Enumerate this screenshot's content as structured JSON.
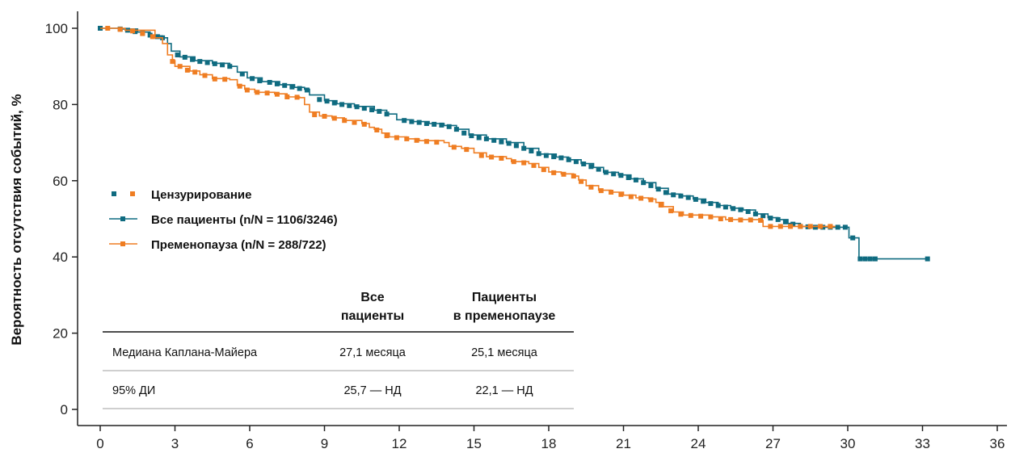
{
  "chart_data": {
    "type": "line",
    "title": "",
    "xlabel": "",
    "ylabel": "Вероятность отсутствия событий, %",
    "xlim": [
      0,
      36
    ],
    "ylim": [
      0,
      100
    ],
    "xticks": [
      "0",
      "3",
      "6",
      "9",
      "12",
      "15",
      "18",
      "21",
      "24",
      "27",
      "30",
      "33",
      "36"
    ],
    "yticks": [
      "0",
      "20",
      "40",
      "60",
      "80",
      "100"
    ],
    "grid": false,
    "legend": {
      "placement": "middle-left",
      "censor_label": "Цензурирование",
      "entries": [
        "Все пациенты (n/N = 1106/3246)",
        "Пременопауза (n/N = 288/722)"
      ]
    },
    "series": [
      {
        "name": "Все пациенты (n/N = 1106/3246)",
        "color": "#0f6b80",
        "points": [
          [
            0,
            100
          ],
          [
            0.8,
            99.8
          ],
          [
            1.5,
            99
          ],
          [
            2,
            98
          ],
          [
            2.5,
            97.5
          ],
          [
            2.7,
            96
          ],
          [
            2.85,
            94
          ],
          [
            3.2,
            92.5
          ],
          [
            3.8,
            91.5
          ],
          [
            4.5,
            90.8
          ],
          [
            5.2,
            90
          ],
          [
            5.5,
            88.5
          ],
          [
            5.9,
            87
          ],
          [
            6.5,
            86
          ],
          [
            7.2,
            85.2
          ],
          [
            7.8,
            84.5
          ],
          [
            8.2,
            84
          ],
          [
            8.4,
            82.5
          ],
          [
            9,
            81
          ],
          [
            9.5,
            80.2
          ],
          [
            10.2,
            79.5
          ],
          [
            11,
            78.5
          ],
          [
            11.5,
            77.5
          ],
          [
            11.9,
            76
          ],
          [
            12.5,
            75.5
          ],
          [
            13.2,
            75
          ],
          [
            13.8,
            74.5
          ],
          [
            14.3,
            73.5
          ],
          [
            14.8,
            72
          ],
          [
            15.5,
            71
          ],
          [
            16.3,
            70
          ],
          [
            17,
            68.5
          ],
          [
            17.6,
            67
          ],
          [
            18.3,
            66.2
          ],
          [
            18.8,
            65.5
          ],
          [
            19.3,
            64.5
          ],
          [
            19.8,
            63.5
          ],
          [
            20.2,
            62.2
          ],
          [
            20.8,
            61.5
          ],
          [
            21.3,
            60.5
          ],
          [
            21.8,
            59.5
          ],
          [
            22.3,
            58
          ],
          [
            22.8,
            56.5
          ],
          [
            23.3,
            56
          ],
          [
            23.8,
            55.2
          ],
          [
            24.3,
            54.3
          ],
          [
            24.8,
            53.5
          ],
          [
            25.3,
            52.8
          ],
          [
            25.8,
            52.3
          ],
          [
            26.3,
            51.3
          ],
          [
            26.8,
            50.3
          ],
          [
            27.2,
            49.8
          ],
          [
            27.6,
            48.8
          ],
          [
            28.1,
            48
          ],
          [
            28.6,
            47.8
          ],
          [
            30,
            47.8
          ],
          [
            30.05,
            45
          ],
          [
            30.4,
            45
          ],
          [
            30.45,
            39.5
          ],
          [
            33.2,
            39.5
          ]
        ],
        "censor": [
          [
            0,
            100
          ],
          [
            0.8,
            99.8
          ],
          [
            1.1,
            99.5
          ],
          [
            1.4,
            99.1
          ],
          [
            1.7,
            98.7
          ],
          [
            2,
            98.2
          ],
          [
            2.3,
            97.8
          ],
          [
            2.5,
            97.5
          ],
          [
            3.1,
            93
          ],
          [
            3.4,
            92.4
          ],
          [
            3.7,
            91.8
          ],
          [
            4,
            91.3
          ],
          [
            4.3,
            91
          ],
          [
            4.6,
            90.7
          ],
          [
            4.9,
            90.4
          ],
          [
            5.2,
            90
          ],
          [
            5.7,
            88
          ],
          [
            6.1,
            86.8
          ],
          [
            6.4,
            86.2
          ],
          [
            6.8,
            85.8
          ],
          [
            7.1,
            85.4
          ],
          [
            7.4,
            85
          ],
          [
            7.7,
            84.6
          ],
          [
            8,
            84.2
          ],
          [
            8.3,
            83.8
          ],
          [
            8.8,
            81.3
          ],
          [
            9.1,
            80.9
          ],
          [
            9.4,
            80.4
          ],
          [
            9.7,
            80
          ],
          [
            10,
            79.7
          ],
          [
            10.3,
            79.4
          ],
          [
            10.6,
            79
          ],
          [
            10.9,
            78.6
          ],
          [
            11.2,
            78.2
          ],
          [
            11.5,
            77.5
          ],
          [
            12.2,
            75.8
          ],
          [
            12.5,
            75.5
          ],
          [
            12.8,
            75.3
          ],
          [
            13.1,
            75
          ],
          [
            13.4,
            74.8
          ],
          [
            13.7,
            74.6
          ],
          [
            14,
            74.2
          ],
          [
            14.3,
            73.5
          ],
          [
            14.6,
            72.5
          ],
          [
            14.9,
            71.8
          ],
          [
            15.2,
            71.3
          ],
          [
            15.5,
            71
          ],
          [
            15.8,
            70.6
          ],
          [
            16.1,
            70.2
          ],
          [
            16.4,
            69.8
          ],
          [
            16.7,
            69.2
          ],
          [
            17,
            68.5
          ],
          [
            17.3,
            67.8
          ],
          [
            17.6,
            67.1
          ],
          [
            17.9,
            66.6
          ],
          [
            18.2,
            66.3
          ],
          [
            18.5,
            66
          ],
          [
            18.8,
            65.5
          ],
          [
            19.1,
            65
          ],
          [
            19.4,
            64.4
          ],
          [
            19.7,
            63.7
          ],
          [
            20,
            63
          ],
          [
            20.3,
            62.2
          ],
          [
            20.6,
            61.8
          ],
          [
            20.9,
            61.4
          ],
          [
            21.2,
            60.8
          ],
          [
            21.5,
            60.2
          ],
          [
            21.8,
            59.5
          ],
          [
            22.1,
            58.7
          ],
          [
            22.4,
            57.8
          ],
          [
            22.7,
            56.9
          ],
          [
            23,
            56.3
          ],
          [
            23.3,
            56
          ],
          [
            23.6,
            55.6
          ],
          [
            23.9,
            55.1
          ],
          [
            24.2,
            54.6
          ],
          [
            24.5,
            54
          ],
          [
            24.8,
            53.5
          ],
          [
            25.1,
            53.1
          ],
          [
            25.4,
            52.7
          ],
          [
            25.7,
            52.4
          ],
          [
            26,
            51.9
          ],
          [
            26.3,
            51.3
          ],
          [
            26.6,
            50.8
          ],
          [
            26.9,
            50.2
          ],
          [
            27.2,
            49.8
          ],
          [
            27.5,
            49.2
          ],
          [
            27.8,
            48.6
          ],
          [
            28.1,
            48
          ],
          [
            28.4,
            47.9
          ],
          [
            28.7,
            47.8
          ],
          [
            29,
            47.8
          ],
          [
            29.3,
            47.8
          ],
          [
            29.6,
            47.8
          ],
          [
            29.9,
            47.8
          ],
          [
            30.2,
            45
          ],
          [
            30.5,
            39.5
          ],
          [
            30.7,
            39.5
          ],
          [
            30.9,
            39.5
          ],
          [
            31.1,
            39.5
          ],
          [
            33.2,
            39.5
          ]
        ]
      },
      {
        "name": "Пременопауза (n/N = 288/722)",
        "color": "#ef7d22",
        "points": [
          [
            0,
            100
          ],
          [
            1,
            99.5
          ],
          [
            2.2,
            97.5
          ],
          [
            2.5,
            96
          ],
          [
            2.7,
            93
          ],
          [
            2.9,
            91.5
          ],
          [
            3,
            90
          ],
          [
            3.6,
            88.8
          ],
          [
            4,
            87.8
          ],
          [
            4.5,
            86.8
          ],
          [
            5.2,
            86.5
          ],
          [
            5.5,
            85
          ],
          [
            5.8,
            84
          ],
          [
            6.2,
            83.2
          ],
          [
            7,
            82.8
          ],
          [
            7.5,
            82
          ],
          [
            8,
            81.8
          ],
          [
            8.2,
            80
          ],
          [
            8.4,
            78
          ],
          [
            8.8,
            77
          ],
          [
            9.3,
            76.5
          ],
          [
            9.8,
            75.8
          ],
          [
            10.5,
            75
          ],
          [
            10.8,
            74
          ],
          [
            11,
            73.5
          ],
          [
            11.3,
            72.5
          ],
          [
            11.6,
            71.5
          ],
          [
            12.3,
            71
          ],
          [
            12.8,
            70.5
          ],
          [
            13.8,
            70
          ],
          [
            14,
            69
          ],
          [
            14.5,
            68.5
          ],
          [
            15,
            67.3
          ],
          [
            15.5,
            66.3
          ],
          [
            16.3,
            65.8
          ],
          [
            16.5,
            65
          ],
          [
            17.2,
            64.5
          ],
          [
            17.6,
            63.5
          ],
          [
            18,
            62.3
          ],
          [
            18.5,
            61.8
          ],
          [
            19,
            61.2
          ],
          [
            19.2,
            60.2
          ],
          [
            19.5,
            58.7
          ],
          [
            20,
            57.5
          ],
          [
            20.5,
            57
          ],
          [
            21,
            56.2
          ],
          [
            21.5,
            55.5
          ],
          [
            22,
            55.2
          ],
          [
            22.3,
            54.3
          ],
          [
            22.6,
            53.2
          ],
          [
            23,
            51.8
          ],
          [
            23.4,
            51
          ],
          [
            24.5,
            50.5
          ],
          [
            25.1,
            49.8
          ],
          [
            26.5,
            49.6
          ],
          [
            26.6,
            48
          ],
          [
            29.3,
            48
          ],
          [
            29.5,
            48
          ]
        ],
        "censor": [
          [
            0.3,
            100
          ],
          [
            0.8,
            99.7
          ],
          [
            1.3,
            99.3
          ],
          [
            1.7,
            98.6
          ],
          [
            2.1,
            97.8
          ],
          [
            2.9,
            91.3
          ],
          [
            3.2,
            90
          ],
          [
            3.5,
            89
          ],
          [
            3.8,
            88.5
          ],
          [
            4.2,
            87.6
          ],
          [
            4.6,
            86.7
          ],
          [
            5,
            86.6
          ],
          [
            5.6,
            84.8
          ],
          [
            5.9,
            83.8
          ],
          [
            6.3,
            83.2
          ],
          [
            6.7,
            83
          ],
          [
            7.1,
            82.7
          ],
          [
            7.5,
            82
          ],
          [
            7.9,
            81.9
          ],
          [
            8.6,
            77.3
          ],
          [
            9,
            76.9
          ],
          [
            9.4,
            76.4
          ],
          [
            9.8,
            75.8
          ],
          [
            10.2,
            75.3
          ],
          [
            10.6,
            74.8
          ],
          [
            11.1,
            73.3
          ],
          [
            11.5,
            71.8
          ],
          [
            11.9,
            71.3
          ],
          [
            12.3,
            71
          ],
          [
            12.7,
            70.6
          ],
          [
            13.1,
            70.3
          ],
          [
            13.5,
            70.1
          ],
          [
            14.2,
            68.8
          ],
          [
            14.7,
            68.2
          ],
          [
            15.3,
            66.6
          ],
          [
            15.7,
            66.2
          ],
          [
            16.1,
            65.9
          ],
          [
            16.6,
            65
          ],
          [
            17,
            64.7
          ],
          [
            17.4,
            64
          ],
          [
            17.8,
            62.9
          ],
          [
            18.2,
            62.1
          ],
          [
            18.6,
            61.7
          ],
          [
            19,
            61.2
          ],
          [
            19.3,
            59.8
          ],
          [
            19.7,
            58.3
          ],
          [
            20.1,
            57.4
          ],
          [
            20.5,
            57
          ],
          [
            20.9,
            56.4
          ],
          [
            21.3,
            55.8
          ],
          [
            21.7,
            55.4
          ],
          [
            22.1,
            55
          ],
          [
            22.5,
            53.6
          ],
          [
            22.9,
            52.1
          ],
          [
            23.3,
            51.2
          ],
          [
            23.7,
            50.9
          ],
          [
            24.1,
            50.7
          ],
          [
            24.5,
            50.5
          ],
          [
            24.9,
            50
          ],
          [
            25.3,
            49.8
          ],
          [
            25.7,
            49.7
          ],
          [
            26.1,
            49.7
          ],
          [
            26.5,
            49.6
          ],
          [
            26.9,
            48
          ],
          [
            27.3,
            48
          ],
          [
            27.7,
            48
          ],
          [
            28.1,
            48
          ],
          [
            28.5,
            48
          ],
          [
            28.9,
            48
          ],
          [
            29.3,
            48
          ]
        ]
      }
    ],
    "table": {
      "headers": [
        [
          "",
          ""
        ],
        [
          "Все",
          "пациенты"
        ],
        [
          "Пациенты",
          "в пременопаузе"
        ]
      ],
      "rows": [
        [
          "Медиана Каплана-Майера",
          "27,1 месяца",
          "25,1 месяца"
        ],
        [
          "95% ДИ",
          "25,7 — НД",
          "22,1 — НД"
        ]
      ]
    }
  }
}
